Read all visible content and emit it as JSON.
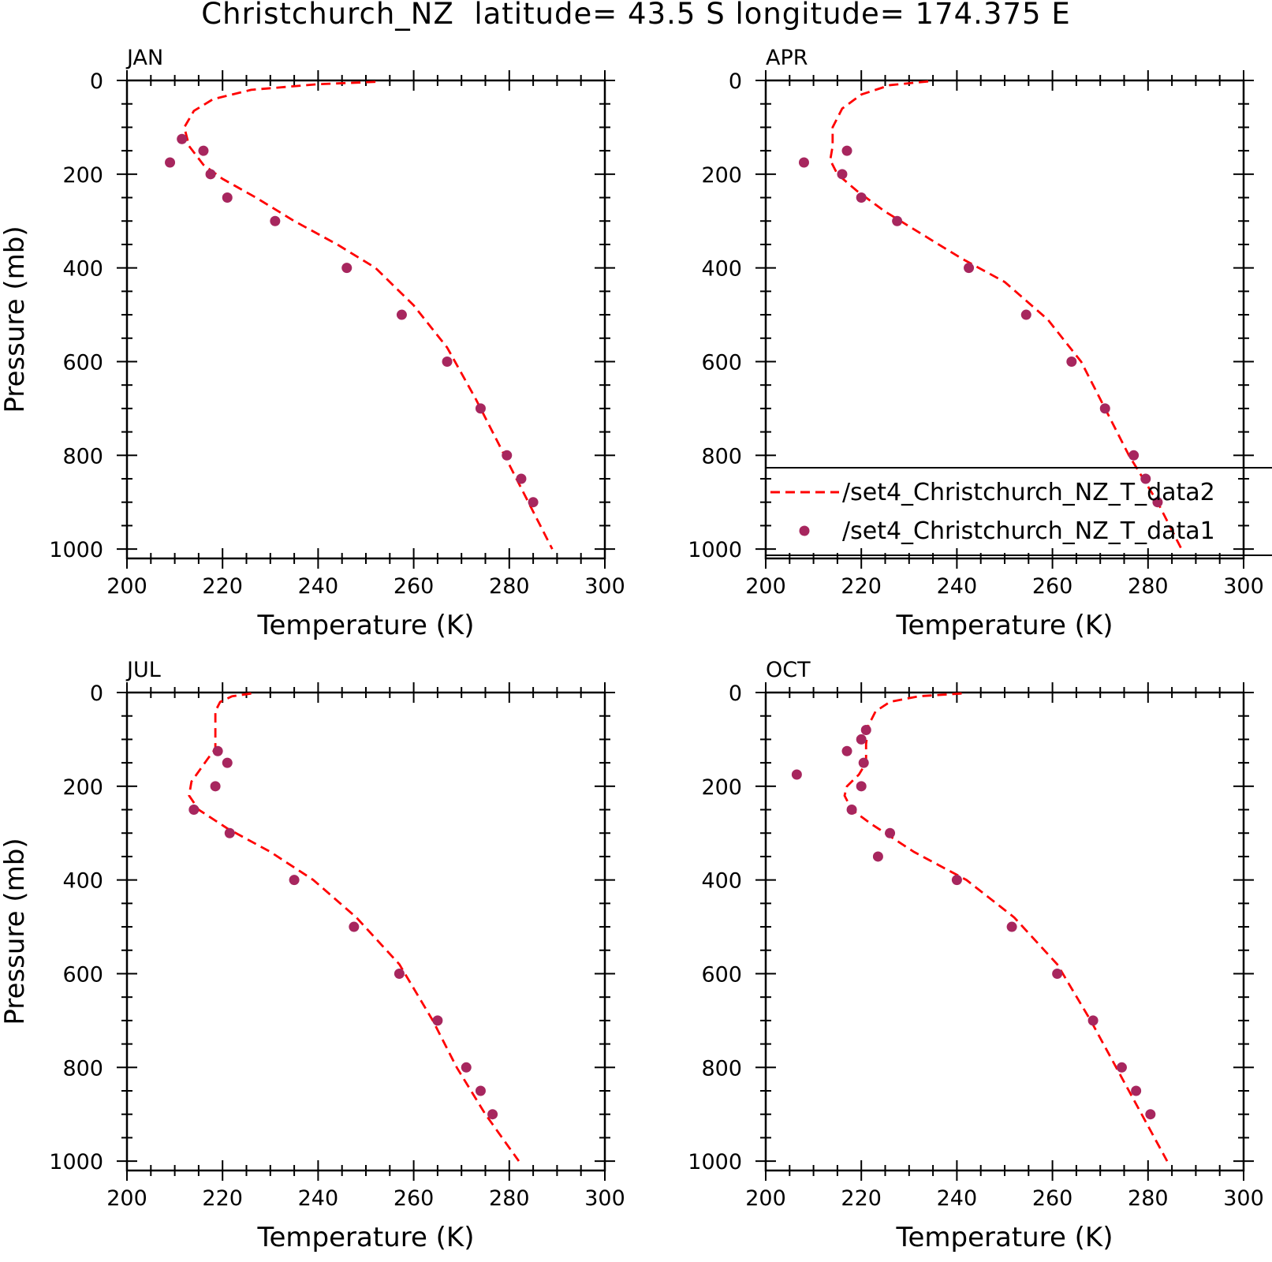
{
  "title": "Christchurch_NZ  latitude= 43.5 S longitude= 174.375 E",
  "colors": {
    "model": "#ff0000",
    "obs": "#a7265e",
    "axis": "#000000"
  },
  "legend": {
    "panel": 1,
    "entries": [
      {
        "label": "/set4_Christchurch_NZ_T_data2",
        "style": "dashed-line",
        "color": "#ff0000"
      },
      {
        "label": "/set4_Christchurch_NZ_T_data1",
        "style": "marker",
        "color": "#a7265e"
      }
    ]
  },
  "chart_data": [
    {
      "type": "line",
      "panel_label": "JAN",
      "xlabel": "Temperature (K)",
      "ylabel": "Pressure (mb)",
      "xlim": [
        200,
        300
      ],
      "ylim": [
        1020,
        0
      ],
      "xticks": [
        200,
        220,
        240,
        260,
        280,
        300
      ],
      "yticks": [
        0,
        200,
        400,
        600,
        800,
        1000
      ],
      "series": [
        {
          "type": "line",
          "style": "dashed",
          "x": [
            252,
            240,
            226,
            218,
            214,
            212,
            213,
            216,
            220,
            227,
            235,
            244,
            252,
            260,
            267,
            273,
            278,
            283,
            289
          ],
          "y": [
            3,
            8,
            20,
            40,
            65,
            100,
            140,
            180,
            210,
            250,
            300,
            350,
            400,
            480,
            570,
            680,
            780,
            880,
            1000
          ]
        },
        {
          "type": "scatter",
          "x": [
            211.5,
            216,
            209,
            217.5,
            221,
            231,
            246,
            257.5,
            267,
            274,
            279.5,
            282.5,
            285
          ],
          "y": [
            125,
            150,
            175,
            200,
            250,
            300,
            400,
            500,
            600,
            700,
            800,
            850,
            900
          ]
        }
      ]
    },
    {
      "type": "line",
      "panel_label": "APR",
      "xlabel": "Temperature (K)",
      "ylabel": "",
      "xlim": [
        200,
        300
      ],
      "ylim": [
        1020,
        0
      ],
      "xticks": [
        200,
        220,
        240,
        260,
        280,
        300
      ],
      "yticks": [
        0,
        200,
        400,
        600,
        800,
        1000
      ],
      "series": [
        {
          "type": "line",
          "style": "dashed",
          "x": [
            234,
            226,
            220,
            216,
            214,
            214,
            213.5,
            215,
            219,
            225,
            233,
            241,
            250,
            259,
            266,
            271,
            276,
            282,
            287
          ],
          "y": [
            2,
            10,
            30,
            60,
            100,
            140,
            170,
            200,
            235,
            280,
            330,
            380,
            430,
            510,
            600,
            700,
            800,
            900,
            1000
          ]
        },
        {
          "type": "scatter",
          "x": [
            217,
            208,
            216,
            220,
            227.5,
            242.5,
            254.5,
            264,
            271,
            277,
            279.5,
            282
          ],
          "y": [
            150,
            175,
            200,
            250,
            300,
            400,
            500,
            600,
            700,
            800,
            850,
            900
          ]
        }
      ]
    },
    {
      "type": "line",
      "panel_label": "JUL",
      "xlabel": "Temperature (K)",
      "ylabel": "Pressure (mb)",
      "xlim": [
        200,
        300
      ],
      "ylim": [
        1020,
        0
      ],
      "xticks": [
        200,
        220,
        240,
        260,
        280,
        300
      ],
      "yticks": [
        0,
        200,
        400,
        600,
        800,
        1000
      ],
      "series": [
        {
          "type": "line",
          "style": "dashed",
          "x": [
            226,
            222,
            219.5,
            218.5,
            218.5,
            218.5,
            217,
            213.5,
            213,
            215,
            221,
            230,
            239,
            248,
            257,
            264,
            269,
            275,
            282
          ],
          "y": [
            2,
            8,
            20,
            40,
            80,
            120,
            140,
            190,
            220,
            250,
            290,
            340,
            400,
            480,
            580,
            700,
            800,
            900,
            1000
          ]
        },
        {
          "type": "scatter",
          "x": [
            219,
            221,
            218.5,
            214,
            221.5,
            235,
            247.5,
            257,
            265,
            271,
            274,
            276.5
          ],
          "y": [
            125,
            150,
            200,
            250,
            300,
            400,
            500,
            600,
            700,
            800,
            850,
            900
          ]
        }
      ]
    },
    {
      "type": "line",
      "panel_label": "OCT",
      "xlabel": "Temperature (K)",
      "ylabel": "",
      "xlim": [
        200,
        300
      ],
      "ylim": [
        1020,
        0
      ],
      "xticks": [
        200,
        220,
        240,
        260,
        280,
        300
      ],
      "yticks": [
        0,
        200,
        400,
        600,
        800,
        1000
      ],
      "series": [
        {
          "type": "line",
          "style": "dashed",
          "x": [
            241,
            232,
            226,
            223,
            221.5,
            221,
            221,
            219.5,
            217,
            216.5,
            218,
            222,
            231,
            242,
            252,
            261,
            268,
            276,
            284
          ],
          "y": [
            2,
            8,
            20,
            40,
            70,
            110,
            150,
            175,
            200,
            220,
            250,
            280,
            340,
            400,
            480,
            580,
            700,
            850,
            1000
          ]
        },
        {
          "type": "scatter",
          "x": [
            221,
            220,
            217,
            220.5,
            206.5,
            220,
            218,
            226,
            223.5,
            240,
            251.5,
            261,
            268.5,
            274.5,
            277.5,
            280.5
          ],
          "y": [
            80,
            100,
            125,
            150,
            175,
            200,
            250,
            300,
            350,
            400,
            500,
            600,
            700,
            800,
            850,
            900
          ]
        }
      ]
    }
  ]
}
